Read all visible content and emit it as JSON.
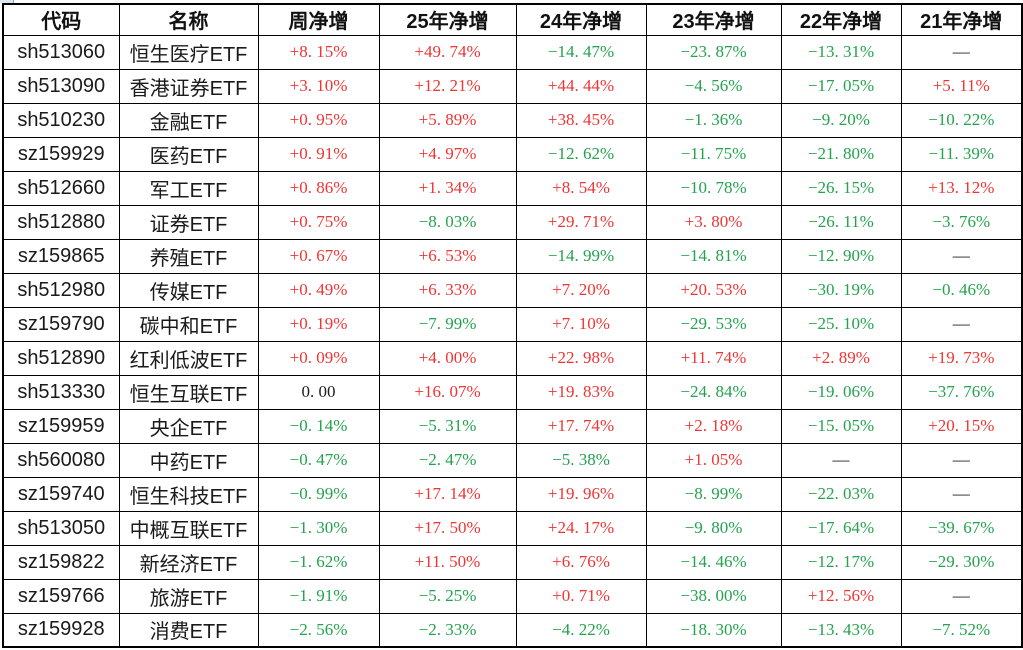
{
  "colors": {
    "positive": "#ef3434",
    "negative": "#24a24e",
    "neutral": "#1c1c1c",
    "grid": "#000000",
    "background": "#ffffff"
  },
  "table": {
    "headers": [
      "代码",
      "名称",
      "周净增",
      "25年净增",
      "24年净增",
      "23年净增",
      "22年净增",
      "21年净增"
    ]
  },
  "chart_data": {
    "type": "table",
    "title": "",
    "columns": [
      "代码",
      "名称",
      "周净增",
      "25年净增",
      "24年净增",
      "23年净增",
      "22年净增",
      "21年净增"
    ],
    "note": "null means cell shows an em dash (—); week value 0 is displayed as 0.00 without percent sign; positive values are red with leading +, negative values are green",
    "rows": [
      {
        "code": "sh513060",
        "name": "恒生医疗ETF",
        "values": [
          8.15,
          49.74,
          -14.47,
          -23.87,
          -13.31,
          null
        ]
      },
      {
        "code": "sh513090",
        "name": "香港证券ETF",
        "values": [
          3.1,
          12.21,
          44.44,
          -4.56,
          -17.05,
          5.11
        ]
      },
      {
        "code": "sh510230",
        "name": "金融ETF",
        "values": [
          0.95,
          5.89,
          38.45,
          -1.36,
          -9.2,
          -10.22
        ]
      },
      {
        "code": "sz159929",
        "name": "医药ETF",
        "values": [
          0.91,
          4.97,
          -12.62,
          -11.75,
          -21.8,
          -11.39
        ]
      },
      {
        "code": "sh512660",
        "name": "军工ETF",
        "values": [
          0.86,
          1.34,
          8.54,
          -10.78,
          -26.15,
          13.12
        ]
      },
      {
        "code": "sh512880",
        "name": "证券ETF",
        "values": [
          0.75,
          -8.03,
          29.71,
          3.8,
          -26.11,
          -3.76
        ]
      },
      {
        "code": "sz159865",
        "name": "养殖ETF",
        "values": [
          0.67,
          6.53,
          -14.99,
          -14.81,
          -12.9,
          null
        ]
      },
      {
        "code": "sh512980",
        "name": "传媒ETF",
        "values": [
          0.49,
          6.33,
          7.2,
          20.53,
          -30.19,
          -0.46
        ]
      },
      {
        "code": "sz159790",
        "name": "碳中和ETF",
        "values": [
          0.19,
          -7.99,
          7.1,
          -29.53,
          -25.1,
          null
        ]
      },
      {
        "code": "sh512890",
        "name": "红利低波ETF",
        "values": [
          0.09,
          4.0,
          22.98,
          11.74,
          2.89,
          19.73
        ]
      },
      {
        "code": "sh513330",
        "name": "恒生互联ETF",
        "values": [
          0.0,
          16.07,
          19.83,
          -24.84,
          -19.06,
          -37.76
        ]
      },
      {
        "code": "sz159959",
        "name": "央企ETF",
        "values": [
          -0.14,
          -5.31,
          17.74,
          2.18,
          -15.05,
          20.15
        ]
      },
      {
        "code": "sh560080",
        "name": "中药ETF",
        "values": [
          -0.47,
          -2.47,
          -5.38,
          1.05,
          null,
          null
        ]
      },
      {
        "code": "sz159740",
        "name": "恒生科技ETF",
        "values": [
          -0.99,
          17.14,
          19.96,
          -8.99,
          -22.03,
          null
        ]
      },
      {
        "code": "sh513050",
        "name": "中概互联ETF",
        "values": [
          -1.3,
          17.5,
          24.17,
          -9.8,
          -17.64,
          -39.67
        ]
      },
      {
        "code": "sz159822",
        "name": "新经济ETF",
        "values": [
          -1.62,
          11.5,
          6.76,
          -14.46,
          -12.17,
          -29.3
        ]
      },
      {
        "code": "sz159766",
        "name": "旅游ETF",
        "values": [
          -1.91,
          -5.25,
          0.71,
          -38.0,
          12.56,
          null
        ]
      },
      {
        "code": "sz159928",
        "name": "消费ETF",
        "values": [
          -2.56,
          -2.33,
          -4.22,
          -18.3,
          -13.43,
          -7.52
        ]
      }
    ]
  }
}
